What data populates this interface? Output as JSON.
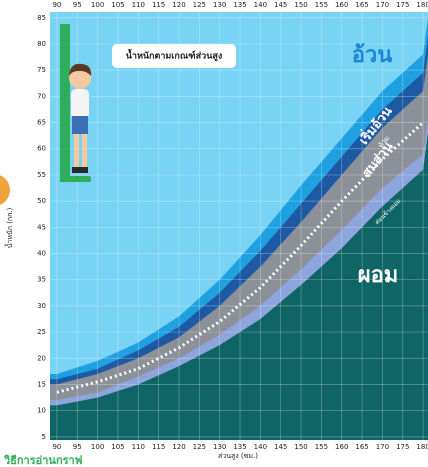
{
  "chart_data": {
    "type": "zone-bands",
    "title": "น้ำหนักตามเกณฑ์ส่วนสูง",
    "x_label": "ส่วนสูง (ซม.)",
    "y_label": "น้ำหนัก (กก.)",
    "footer": "วิธีการอ่านกราฟ",
    "x": [
      90,
      100,
      110,
      120,
      130,
      140,
      150,
      160,
      170,
      180
    ],
    "background_zone": {
      "name": "อ้วน",
      "color": "#79d3f4",
      "label_color": "#1b86d6"
    },
    "series": [
      {
        "name": "เริ่มอ้วน",
        "color": "#1fa0e0",
        "values": [
          17,
          19.5,
          23,
          28,
          35,
          43.5,
          53,
          62,
          71,
          78
        ]
      },
      {
        "name": "ท้วม",
        "color": "#1d5aa3",
        "values": [
          16,
          18,
          21.5,
          26,
          32.5,
          40.5,
          49.5,
          58.5,
          67.5,
          74.5
        ]
      },
      {
        "name": "สมส่วน",
        "color": "#8c9098",
        "values": [
          15,
          17,
          20,
          24,
          30,
          37.5,
          46,
          55,
          64,
          71
        ]
      },
      {
        "name": "ค่อนข้างผอม",
        "color": "#8ea4dc",
        "values": [
          12,
          13.5,
          16.5,
          20,
          24.5,
          30,
          37,
          44.5,
          52.5,
          59
        ]
      },
      {
        "name": "ผอม",
        "color": "#0f6466",
        "values": [
          11,
          12.5,
          15,
          18.5,
          22.5,
          27.5,
          34,
          41,
          49,
          56
        ]
      }
    ],
    "median_line": {
      "color": "#ffffff",
      "values": [
        13.5,
        15.5,
        18,
        22,
        27,
        33.5,
        41.5,
        50,
        58,
        65
      ]
    },
    "xlim": [
      88.3,
      181.2
    ],
    "ylim": [
      4.4,
      86.1
    ],
    "xticks": [
      90,
      95,
      100,
      105,
      110,
      115,
      120,
      125,
      130,
      135,
      140,
      145,
      150,
      155,
      160,
      165,
      170,
      175,
      180
    ],
    "yticks": [
      5,
      10,
      15,
      20,
      25,
      30,
      35,
      40,
      45,
      50,
      55,
      60,
      65,
      70,
      75,
      80,
      85
    ],
    "grid": true
  }
}
